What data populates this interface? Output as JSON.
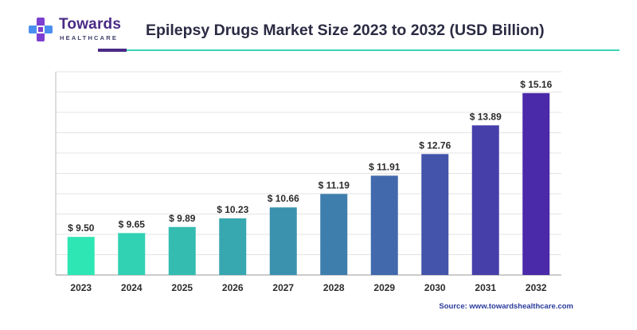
{
  "brand": {
    "name": "Towards",
    "sub": "HEALTHCARE"
  },
  "header": {
    "title": "Epilepsy Drugs Market Size 2023 to 2032 (USD Billion)"
  },
  "source": "Source: www.towardshealthcare.com",
  "colors": {
    "bar_start": "#2ee6b4",
    "bar_end": "#4a2aa8",
    "brand_purple": "#4a2a86",
    "brand_teal": "#3ad6b8"
  },
  "chart_data": {
    "type": "bar",
    "title": "Epilepsy Drugs Market Size 2023 to 2032 (USD Billion)",
    "xlabel": "",
    "ylabel": "",
    "categories": [
      "2023",
      "2024",
      "2025",
      "2026",
      "2027",
      "2028",
      "2029",
      "2030",
      "2031",
      "2032"
    ],
    "values": [
      9.5,
      9.65,
      9.89,
      10.23,
      10.66,
      11.19,
      11.91,
      12.76,
      13.89,
      15.16
    ],
    "labels": [
      "$ 9.50",
      "$ 9.65",
      "$ 9.89",
      "$ 10.23",
      "$ 10.66",
      "$ 11.19",
      "$ 11.91",
      "$ 12.76",
      "$ 13.89",
      "$ 15.16"
    ],
    "ylim": [
      8,
      16
    ],
    "grid": true,
    "legend": "none"
  }
}
